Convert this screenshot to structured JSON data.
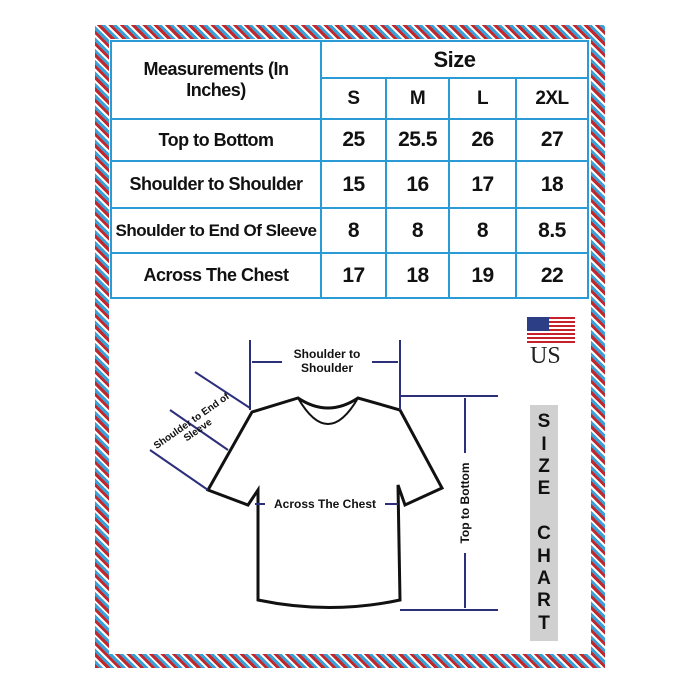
{
  "table": {
    "header": "Measurements (In Inches)",
    "size_label": "Size",
    "sizes": [
      "S",
      "M",
      "L",
      "2XL"
    ],
    "rows": [
      {
        "label": "Top to Bottom",
        "values": [
          "25",
          "25.5",
          "26",
          "27"
        ]
      },
      {
        "label": "Shoulder to Shoulder",
        "values": [
          "15",
          "16",
          "17",
          "18"
        ]
      },
      {
        "label": "Shoulder to End Of Sleeve",
        "values": [
          "8",
          "8",
          "8",
          "8.5"
        ]
      },
      {
        "label": "Across The Chest",
        "values": [
          "17",
          "18",
          "19",
          "22"
        ]
      }
    ]
  },
  "diagram": {
    "shoulder_to_shoulder": "Shoulder to Shoulder",
    "shoulder_to_sleeve": "Shoulder to End of Sleeve",
    "across_chest": "Across The Chest",
    "top_to_bottom": "Top to Bottom"
  },
  "side": {
    "country": "US",
    "letters": [
      "S",
      "I",
      "Z",
      "E",
      "",
      "C",
      "H",
      "A",
      "R",
      "T"
    ]
  },
  "colors": {
    "table_border": "#2a9bd5",
    "arrow": "#2c2f7a",
    "frame_red": "#c0282d",
    "frame_blue": "#3aa0d8"
  }
}
